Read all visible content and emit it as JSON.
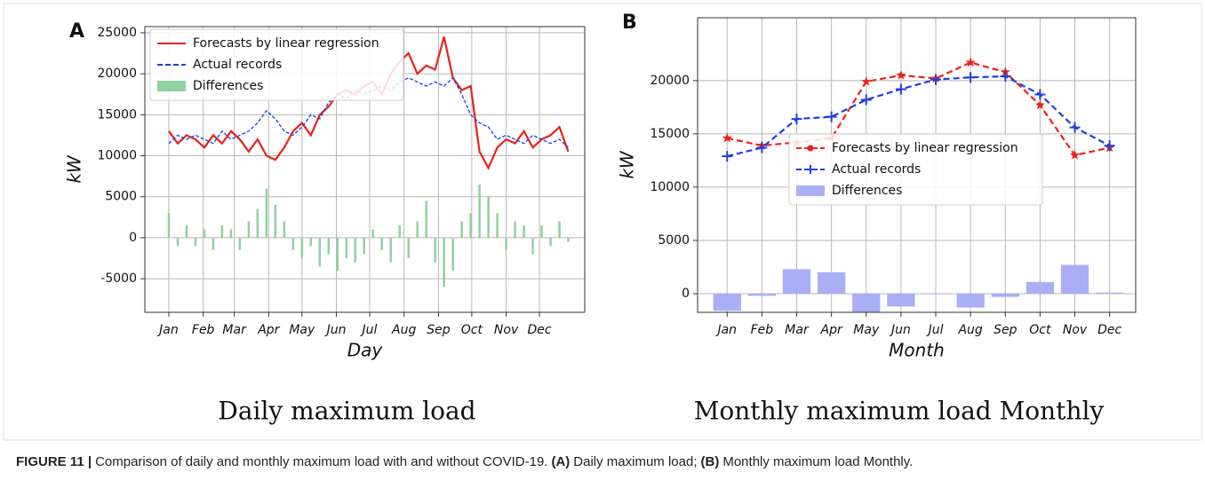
{
  "chart_data": [
    {
      "type": "combo",
      "panel_label": "A",
      "subtitle": "Daily maximum load",
      "xlabel": "Day",
      "ylabel": "kW",
      "x": [
        1,
        9,
        17,
        25,
        33,
        41,
        49,
        57,
        65,
        73,
        81,
        89,
        97,
        105,
        113,
        121,
        129,
        137,
        145,
        153,
        161,
        169,
        177,
        185,
        193,
        201,
        209,
        217,
        225,
        233,
        241,
        249,
        257,
        265,
        273,
        281,
        289,
        297,
        305,
        313,
        321,
        329,
        337,
        345,
        353,
        361
      ],
      "xlim": [
        -20.6,
        375.8
      ],
      "xticks": [
        {
          "value": 1,
          "label": "Jan"
        },
        {
          "value": 32,
          "label": "Feb"
        },
        {
          "value": 60,
          "label": "Mar"
        },
        {
          "value": 91,
          "label": "Apr"
        },
        {
          "value": 121,
          "label": "May"
        },
        {
          "value": 152,
          "label": "Jun"
        },
        {
          "value": 182,
          "label": "Jul"
        },
        {
          "value": 213,
          "label": "Aug"
        },
        {
          "value": 244,
          "label": "Sep"
        },
        {
          "value": 274,
          "label": "Oct"
        },
        {
          "value": 305,
          "label": "Nov"
        },
        {
          "value": 335,
          "label": "Dec"
        }
      ],
      "ylim": [
        -9100,
        25750
      ],
      "yticks": [
        -5000,
        0,
        5000,
        10000,
        15000,
        20000,
        25000
      ],
      "grid": true,
      "legend": "upper left",
      "series": [
        {
          "name": "Forecasts by linear regression",
          "color": "#e8221c",
          "kind": "line",
          "style": "solid",
          "values": [
            13000,
            11500,
            12500,
            12000,
            11000,
            12500,
            11500,
            13000,
            12000,
            10500,
            12000,
            10000,
            9500,
            11000,
            13000,
            14000,
            12500,
            15000,
            16000,
            17500,
            18000,
            17500,
            18500,
            19000,
            17500,
            20000,
            21500,
            22500,
            20000,
            21000,
            20500,
            24500,
            19500,
            18000,
            18500,
            10500,
            8500,
            11000,
            12000,
            11500,
            13000,
            11000,
            12000,
            12500,
            13500,
            10500
          ]
        },
        {
          "name": "Actual records",
          "color": "#1f3fe0",
          "kind": "line",
          "style": "dashed",
          "values": [
            11500,
            12500,
            12000,
            12500,
            12000,
            11500,
            13000,
            12000,
            12500,
            13000,
            14000,
            15500,
            14500,
            13000,
            12500,
            13500,
            15000,
            14500,
            16500,
            17500,
            17000,
            18000,
            17500,
            18000,
            18500,
            18000,
            19000,
            19500,
            19000,
            18500,
            19000,
            18500,
            19500,
            17500,
            15000,
            14000,
            13500,
            12000,
            12500,
            12000,
            11500,
            12500,
            12000,
            11500,
            12000,
            11000
          ]
        },
        {
          "name": "Differences",
          "color": "#8fd19e",
          "kind": "bar",
          "values": [
            3000,
            -1000,
            1500,
            -1000,
            1000,
            -1500,
            1500,
            1000,
            -1500,
            2000,
            3500,
            6000,
            4000,
            2000,
            -1500,
            -2500,
            -1000,
            -3500,
            -2000,
            -4000,
            -2500,
            -3000,
            -2000,
            1000,
            -1500,
            -3000,
            1500,
            -2500,
            2000,
            4500,
            -3000,
            -6000,
            -4000,
            2000,
            3000,
            6500,
            5000,
            3000,
            -1500,
            2000,
            1500,
            -2000,
            1500,
            -1000,
            2000,
            -500
          ]
        }
      ]
    },
    {
      "type": "combo",
      "panel_label": "B",
      "subtitle": "Monthly maximum load Monthly",
      "xlabel": "Month",
      "ylabel": "kW",
      "categories": [
        "Jan",
        "Feb",
        "Mar",
        "Apr",
        "May",
        "Jun",
        "Jul",
        "Aug",
        "Sep",
        "Oct",
        "Nov",
        "Dec"
      ],
      "ylim": [
        -1750,
        25900
      ],
      "yticks": [
        0,
        5000,
        10000,
        15000,
        20000
      ],
      "grid": true,
      "legend": "center right",
      "series": [
        {
          "name": "Forecasts by linear regression",
          "color": "#e8221c",
          "kind": "line",
          "style": "dashed",
          "marker": "star",
          "values": [
            14600,
            13900,
            14200,
            14600,
            19900,
            20500,
            20200,
            21700,
            20800,
            17700,
            13000,
            13700
          ]
        },
        {
          "name": "Actual records",
          "color": "#1f3fe0",
          "kind": "line",
          "style": "dashed",
          "marker": "plus",
          "values": [
            12900,
            13700,
            16400,
            16600,
            18200,
            19200,
            20100,
            20300,
            20400,
            18700,
            15600,
            13900
          ]
        },
        {
          "name": "Differences",
          "color": "#a9aef5",
          "kind": "bar",
          "values": [
            -1600,
            -200,
            2300,
            2000,
            -1700,
            -1200,
            -50,
            -1300,
            -300,
            1100,
            2700,
            100
          ]
        }
      ]
    }
  ],
  "caption": [
    {
      "text": "FIGURE 11 |",
      "bold": true
    },
    {
      "text": "Comparison of daily and monthly maximum load with and without COVID-19.",
      "bold": false
    },
    {
      "text": "(A)",
      "bold": true
    },
    {
      "text": "Daily maximum load;",
      "bold": false
    },
    {
      "text": "(B)",
      "bold": true
    },
    {
      "text": "Monthly maximum load Monthly.",
      "bold": false
    }
  ]
}
